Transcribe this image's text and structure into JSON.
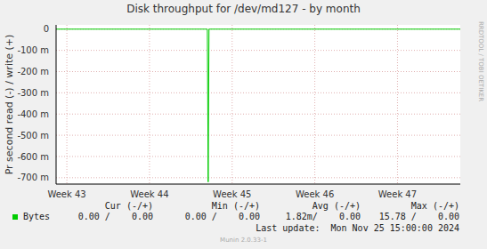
{
  "chart_data": {
    "type": "line",
    "title": "Disk throughput for /dev/md127 - by month",
    "y_label": "Pr second read (-) / write (+)",
    "x": [
      42.87,
      44.7,
      44.71,
      44.72,
      47.76
    ],
    "series": [
      {
        "name": "Bytes",
        "color": "#00cc00",
        "values": [
          0,
          0,
          -0.72,
          0,
          0
        ]
      }
    ],
    "xlim": [
      42.87,
      47.76
    ],
    "xticks": [
      {
        "value": 43,
        "label": "Week 43"
      },
      {
        "value": 44,
        "label": "Week 44"
      },
      {
        "value": 45,
        "label": "Week 45"
      },
      {
        "value": 46,
        "label": "Week 46"
      },
      {
        "value": 47,
        "label": "Week 47"
      }
    ],
    "ylim": [
      -0.73,
      0.02
    ],
    "yticks": [
      {
        "value": -0.7,
        "label": "-700 m"
      },
      {
        "value": -0.6,
        "label": "-600 m"
      },
      {
        "value": -0.5,
        "label": "-500 m"
      },
      {
        "value": -0.4,
        "label": "-400 m"
      },
      {
        "value": -0.3,
        "label": "-300 m"
      },
      {
        "value": -0.2,
        "label": "-200 m"
      },
      {
        "value": -0.1,
        "label": "-100 m"
      },
      0
    ],
    "grid": true,
    "legend_table": {
      "headers": [
        "Cur (-/+)",
        "Min (-/+)",
        "Avg (-/+)",
        "Max (-/+)"
      ],
      "cells": [
        [
          "0.00 /    0.00",
          "0.00 /    0.00",
          "1.82m/    0.00",
          "15.78 /    0.00"
        ]
      ]
    },
    "last_update": "Last update:  Mon Nov 25 15:00:00 2024",
    "footer": "Munin 2.0.33-1",
    "watermark": "RRDTOOL / TOBI OETIKER"
  }
}
